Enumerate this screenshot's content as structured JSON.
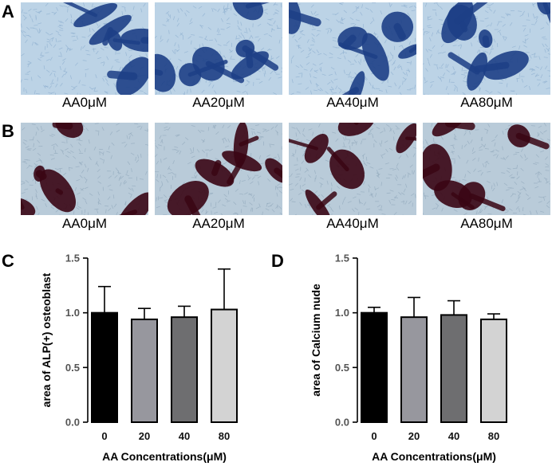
{
  "panels": {
    "A": {
      "letter": "A",
      "stain": "alp",
      "images": [
        {
          "label": "AA0μM"
        },
        {
          "label": "AA20μM"
        },
        {
          "label": "AA40μM"
        },
        {
          "label": "AA80μM"
        }
      ]
    },
    "B": {
      "letter": "B",
      "stain": "alizarin",
      "images": [
        {
          "label": "AA0μM"
        },
        {
          "label": "AA20μM"
        },
        {
          "label": "AA40μM"
        },
        {
          "label": "AA80μM"
        }
      ]
    }
  },
  "colors": {
    "alp_bg": "#bcd3e6",
    "alp_dark": "#1d3f86",
    "alz_bg": "#b9cbd9",
    "alz_dark": "#3a0614",
    "bar_fills": [
      "#000000",
      "#97979e",
      "#6e6e70",
      "#d3d3d3"
    ]
  },
  "chart_data": [
    {
      "panel": "C",
      "type": "bar",
      "title": "",
      "xlabel": "AA Concentrations(μM)",
      "ylabel": "area of ALP(+) osteoblast",
      "categories": [
        "0",
        "20",
        "40",
        "80"
      ],
      "values": [
        1.0,
        0.94,
        0.96,
        1.03
      ],
      "errors": [
        0.24,
        0.1,
        0.1,
        0.37
      ],
      "ylim": [
        0,
        1.5
      ],
      "yticks": [
        "0.0",
        "0.5",
        "1.0",
        "1.5"
      ],
      "grid": false,
      "legend": "none"
    },
    {
      "panel": "D",
      "type": "bar",
      "title": "",
      "xlabel": "AA Concentrations(μM)",
      "ylabel": "area of Calcium nude",
      "categories": [
        "0",
        "20",
        "40",
        "80"
      ],
      "values": [
        1.0,
        0.96,
        0.98,
        0.94
      ],
      "errors": [
        0.05,
        0.18,
        0.13,
        0.05
      ],
      "ylim": [
        0,
        1.5
      ],
      "yticks": [
        "0.0",
        "0.5",
        "1.0",
        "1.5"
      ],
      "grid": false,
      "legend": "none"
    }
  ]
}
